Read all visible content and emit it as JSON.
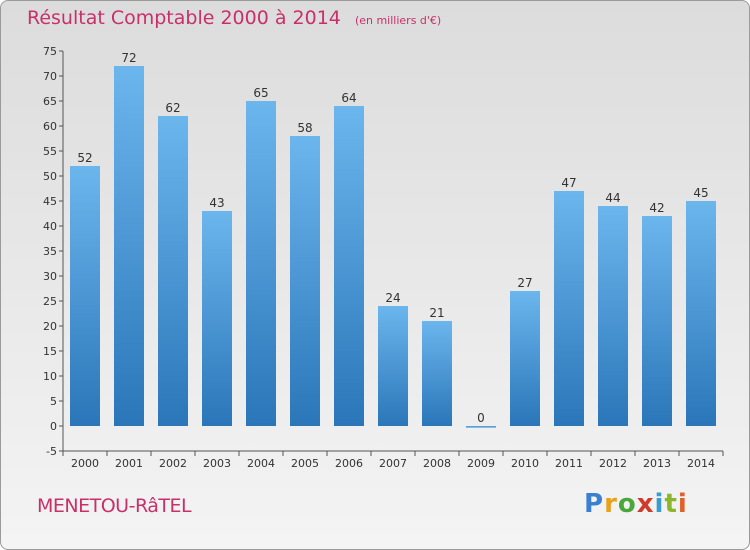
{
  "title": "Résultat Comptable 2000 à 2014",
  "subtitle": "(en milliers d'€)",
  "place_name": "MENETOU-RâTEL",
  "brand": {
    "letters": [
      "P",
      "r",
      "o",
      "x",
      "i",
      "t",
      "i"
    ],
    "colors": [
      "#3a7fd0",
      "#e8a21a",
      "#4aa83a",
      "#d03a2a",
      "#3a9bd0",
      "#8bb82a",
      "#e0602a"
    ]
  },
  "colors": {
    "bar_top": "#6cb6ee",
    "bar_bottom": "#2a76b8",
    "title": "#c8306a"
  },
  "chart_data": {
    "type": "bar",
    "title": "Résultat Comptable 2000 à 2014",
    "categories": [
      "2000",
      "2001",
      "2002",
      "2003",
      "2004",
      "2005",
      "2006",
      "2007",
      "2008",
      "2009",
      "2010",
      "2011",
      "2012",
      "2013",
      "2014"
    ],
    "values": [
      52,
      72,
      62,
      43,
      65,
      58,
      64,
      24,
      21,
      0,
      27,
      47,
      44,
      42,
      45
    ],
    "ylim": [
      -5,
      75
    ],
    "yticks": [
      -5,
      0,
      5,
      10,
      15,
      20,
      25,
      30,
      35,
      40,
      45,
      50,
      55,
      60,
      65,
      70,
      75
    ],
    "grid": false,
    "data_labels": true
  }
}
